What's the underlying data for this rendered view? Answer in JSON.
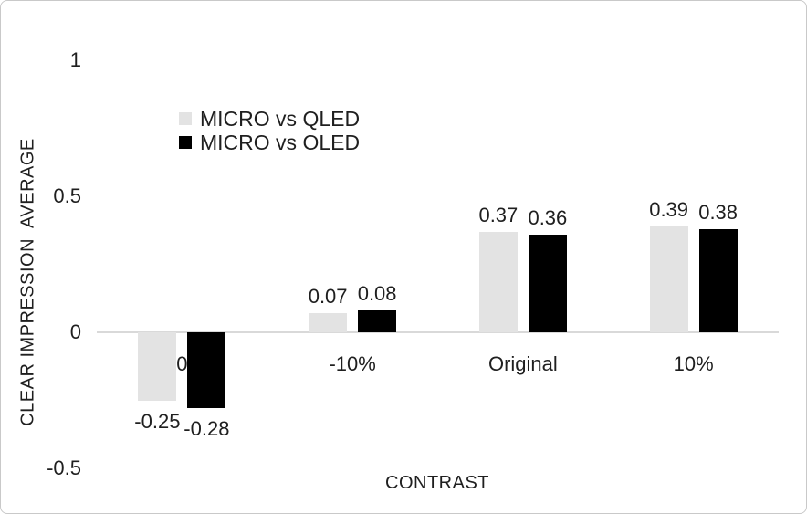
{
  "figure": {
    "background": "#ffffff",
    "border_color": "#c9c9c9"
  },
  "chart_data": {
    "type": "bar",
    "title": "",
    "xlabel": "CONTRAST",
    "ylabel": "CLEAR IMPRESSION  AVERAGE",
    "categories": [
      "-20%",
      "-10%",
      "Original",
      "10%"
    ],
    "series": [
      {
        "name": "MICRO vs QLED",
        "color": "#e3e3e3",
        "values": [
          -0.25,
          0.07,
          0.37,
          0.39
        ]
      },
      {
        "name": "MICRO vs OLED",
        "color": "#000000",
        "values": [
          -0.28,
          0.08,
          0.36,
          0.38
        ]
      }
    ],
    "data_labels": true,
    "data_label_format": "0.00",
    "ylim": [
      -0.5,
      1
    ],
    "yticks": [
      {
        "label": "1",
        "value": 1
      },
      {
        "label": "0.5",
        "value": 0.5
      },
      {
        "label": "0",
        "value": 0
      },
      {
        "label": "-0.5",
        "value": -0.5
      }
    ],
    "grid": false,
    "legend_position": "inside-upper-left",
    "axis_line_color": "#d9d9d9",
    "text_color": "#1f1f1f"
  }
}
